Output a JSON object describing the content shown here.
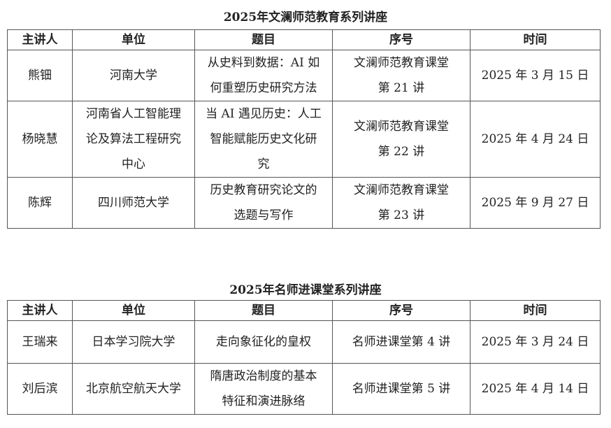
{
  "table1": {
    "title": "2025年文澜师范教育系列讲座",
    "headers": [
      "主讲人",
      "单位",
      "题目",
      "序号",
      "时间"
    ],
    "rows": [
      {
        "speaker": "熊钿",
        "unit": "河南大学",
        "topic": "从史料到数据：AI 如\n何重塑历史研究方法",
        "number": "文澜师范教育课堂\n第 21 讲",
        "date": "2025 年 3 月 15 日"
      },
      {
        "speaker": "杨晓慧",
        "unit": "河南省人工智能理\n论及算法工程研究\n中心",
        "topic": "当 AI 遇见历史：人工\n智能赋能历史文化研\n究",
        "number": "文澜师范教育课堂\n第 22 讲",
        "date": "2025 年 4 月 24 日"
      },
      {
        "speaker": "陈辉",
        "unit": "四川师范大学",
        "topic": "历史教育研究论文的\n选题与写作",
        "number": "文澜师范教育课堂\n第 23 讲",
        "date": "2025 年 9 月 27 日"
      }
    ]
  },
  "table2": {
    "title": "2025年名师进课堂系列讲座",
    "headers": [
      "主讲人",
      "单位",
      "题目",
      "序号",
      "时间"
    ],
    "rows": [
      {
        "speaker": "王瑞来",
        "unit": "日本学习院大学",
        "topic": "走向象征化的皇权",
        "number": "名师进课堂第 4 讲",
        "date": "2025 年 3 月 24 日"
      },
      {
        "speaker": "刘后滨",
        "unit": "北京航空航天大学",
        "topic": "隋唐政治制度的基本\n特征和演进脉络",
        "number": "名师进课堂第 5 讲",
        "date": "2025 年 4 月 14 日"
      }
    ]
  }
}
